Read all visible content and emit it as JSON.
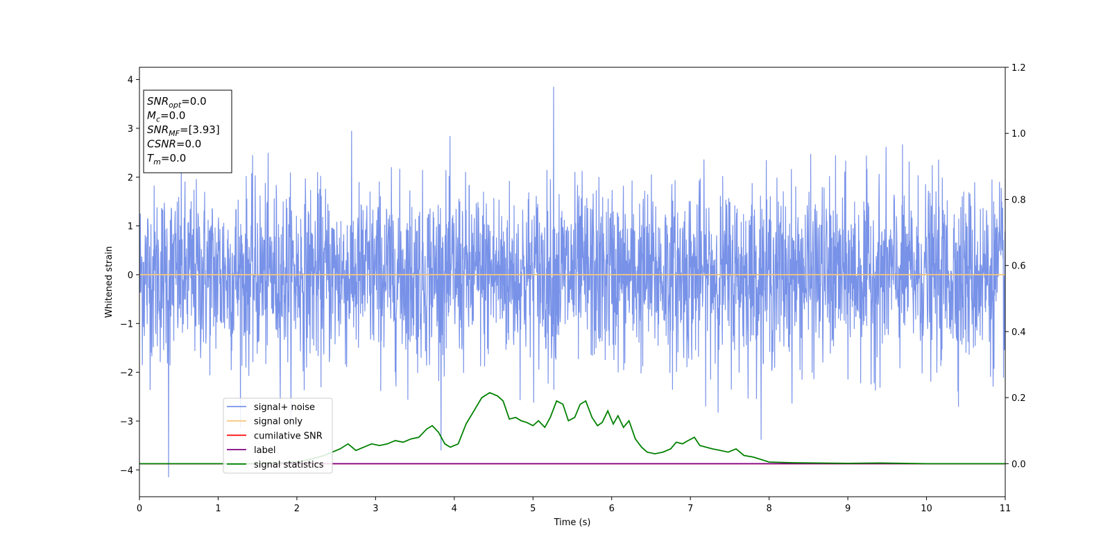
{
  "chart_data": {
    "type": "line",
    "xlabel": "Time (s)",
    "ylabel": "Whitened strain",
    "xlim": [
      0,
      11
    ],
    "ylim": [
      -4.55,
      4.25
    ],
    "y2lim": [
      -0.1,
      1.2
    ],
    "x_ticks": [
      "0",
      "1",
      "2",
      "3",
      "4",
      "5",
      "6",
      "7",
      "8",
      "9",
      "10",
      "11"
    ],
    "y_ticks": [
      "−4",
      "−3",
      "−2",
      "−1",
      "0",
      "1",
      "2",
      "3",
      "4"
    ],
    "y2_ticks": [
      "0.0",
      "0.2",
      "0.4",
      "0.6",
      "0.8",
      "1.0",
      "1.2"
    ],
    "grid": false,
    "legend_position": "lower-left",
    "series": [
      {
        "name": "signal+ noise",
        "axis": "left",
        "color": "#7892e8",
        "description_values": {
          "mean": 0.0,
          "std_approx": 0.9,
          "max": 3.85,
          "max_at": 5.26,
          "min": -4.15,
          "min_at": 0.37
        }
      },
      {
        "name": "signal only",
        "axis": "left",
        "color": "#f5c77e",
        "x": [
          0,
          11
        ],
        "y": [
          0.0,
          0.0
        ]
      },
      {
        "name": "cumilative SNR",
        "axis": "right",
        "color": "#ff0000",
        "x": [
          0,
          11
        ],
        "y": [
          0.0,
          0.0
        ]
      },
      {
        "name": "label",
        "axis": "right",
        "color": "#800080",
        "x": [
          0,
          11
        ],
        "y": [
          0.0,
          0.0
        ]
      },
      {
        "name": "signal statistics",
        "axis": "right",
        "color": "#008000",
        "x": [
          0,
          0.5,
          1.0,
          1.5,
          2.0,
          2.2,
          2.35,
          2.45,
          2.55,
          2.65,
          2.75,
          2.85,
          2.95,
          3.05,
          3.15,
          3.25,
          3.35,
          3.45,
          3.55,
          3.65,
          3.72,
          3.8,
          3.88,
          3.95,
          4.05,
          4.15,
          4.25,
          4.35,
          4.45,
          4.55,
          4.62,
          4.7,
          4.78,
          4.85,
          4.92,
          5.0,
          5.07,
          5.15,
          5.22,
          5.3,
          5.38,
          5.45,
          5.53,
          5.6,
          5.67,
          5.75,
          5.82,
          5.88,
          5.95,
          6.02,
          6.08,
          6.15,
          6.22,
          6.3,
          6.38,
          6.45,
          6.55,
          6.65,
          6.75,
          6.82,
          6.9,
          6.97,
          7.05,
          7.12,
          7.2,
          7.28,
          7.38,
          7.48,
          7.58,
          7.68,
          7.8,
          8.0,
          8.3,
          8.6,
          9.0,
          9.4,
          10.0,
          10.5,
          11.0
        ],
        "y": [
          0.0,
          0.0,
          0.0,
          0.0,
          0.005,
          0.015,
          0.025,
          0.035,
          0.045,
          0.06,
          0.04,
          0.05,
          0.06,
          0.055,
          0.06,
          0.07,
          0.065,
          0.075,
          0.08,
          0.105,
          0.115,
          0.095,
          0.06,
          0.05,
          0.06,
          0.12,
          0.16,
          0.2,
          0.215,
          0.205,
          0.19,
          0.135,
          0.14,
          0.13,
          0.125,
          0.115,
          0.13,
          0.11,
          0.14,
          0.19,
          0.18,
          0.13,
          0.14,
          0.18,
          0.19,
          0.14,
          0.115,
          0.125,
          0.16,
          0.12,
          0.145,
          0.11,
          0.13,
          0.075,
          0.05,
          0.035,
          0.03,
          0.035,
          0.045,
          0.065,
          0.06,
          0.07,
          0.08,
          0.055,
          0.05,
          0.045,
          0.04,
          0.035,
          0.045,
          0.025,
          0.02,
          0.005,
          0.003,
          0.002,
          0.001,
          0.002,
          0.0,
          0.0,
          0.0
        ]
      }
    ],
    "annotation": {
      "lines": [
        {
          "base": "SNR",
          "sub": "opt",
          "value": "=0.0"
        },
        {
          "base": "M",
          "sub": "c",
          "value": "=0.0"
        },
        {
          "base": "SNR",
          "sub": "MF",
          "value": "=[3.93]"
        },
        {
          "base": "CSNR",
          "sub": "",
          "value": "=0.0"
        },
        {
          "base": "T",
          "sub": "m",
          "value": "=0.0"
        }
      ]
    }
  }
}
